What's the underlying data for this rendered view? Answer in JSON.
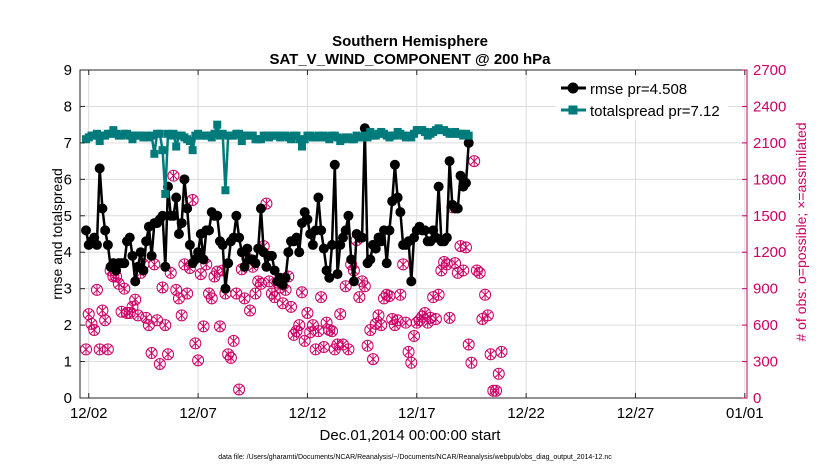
{
  "chart_data": {
    "type": "line",
    "title": "Southern Hemisphere",
    "subtitle": "SAT_V_WIND_COMPONENT @ 200 hPa",
    "xlabel": "Dec.01,2014 00:00:00 start",
    "ylabel_left": "rmse and totalspread",
    "ylabel_right": "# of obs: o=possible; ×=assimilated",
    "footnote": "data file: /Users/gharamti/Documents/NCAR/Reanalysis/~/Documents/NCAR/Reanalysis/webpub/obs_diag_output_2014-12.nc",
    "x_unit": "days since Dec.01,2014 00:00",
    "xlim": [
      0.6,
      31.1
    ],
    "ylim_left": [
      0,
      9
    ],
    "ylim_right": [
      0,
      2700
    ],
    "x_ticks": [
      1,
      6,
      11,
      16,
      21,
      26,
      31
    ],
    "x_tick_labels": [
      "12/02",
      "12/07",
      "12/12",
      "12/17",
      "12/22",
      "12/27",
      "01/01"
    ],
    "y_ticks_left": [
      0,
      1,
      2,
      3,
      4,
      5,
      6,
      7,
      8,
      9
    ],
    "y_ticks_right": [
      0,
      300,
      600,
      900,
      1200,
      1500,
      1800,
      2100,
      2400,
      2700
    ],
    "grid": true,
    "legend_position": "top-right",
    "colors": {
      "rmse": "#000000",
      "totalspread": "#007b7b",
      "obs": "#cc0066",
      "axis": "#262626"
    },
    "series": [
      {
        "name": "rmse",
        "legend_label": "rmse pr=4.508",
        "axis": "left",
        "x_start": 0.875,
        "x_step": 0.125,
        "values": [
          4.6,
          4.2,
          4.3,
          4.4,
          4.2,
          6.3,
          5.2,
          4.6,
          4.2,
          3.6,
          3.7,
          3.5,
          3.7,
          3.7,
          3.7,
          4.3,
          4.4,
          3.9,
          3.2,
          3.6,
          4.0,
          3.5,
          4.3,
          4.7,
          3.9,
          4.8,
          4.8,
          4.9,
          5.0,
          3.6,
          5.8,
          5.0,
          5.0,
          5.5,
          4.5,
          4.8,
          6.0,
          5.2,
          4.2,
          3.7,
          3.8,
          4.0,
          4.5,
          3.8,
          4.6,
          4.6,
          5.1,
          5.0,
          5.0,
          4.3,
          4.2,
          3.0,
          3.7,
          4.3,
          4.4,
          5.0,
          4.4,
          4.0,
          3.6,
          4.1,
          3.8,
          3.8,
          3.7,
          4.1,
          5.2,
          4.0,
          3.6,
          3.9,
          3.9,
          3.5,
          3.2,
          3.3,
          3.1,
          3.3,
          4.0,
          4.3,
          4.3,
          4.4,
          4.0,
          4.8,
          5.1,
          4.9,
          4.5,
          4.2,
          4.6,
          5.5,
          4.6,
          4.1,
          3.5,
          3.3,
          4.2,
          6.4,
          3.4,
          4.2,
          4.4,
          4.6,
          5.0,
          3.8,
          3.2,
          4.5,
          4.4,
          4.4,
          7.4,
          3.7,
          3.8,
          4.2,
          4.1,
          4.4,
          4.3,
          4.6,
          3.7,
          4.6,
          5.4,
          6.4,
          5.5,
          5.1,
          4.2,
          4.2,
          4.3,
          3.2,
          4.4,
          4.6,
          4.7,
          4.6,
          4.6,
          4.3,
          4.3,
          4.6,
          4.4,
          5.8,
          4.3,
          4.3,
          4.4,
          6.5,
          5.3,
          5.2,
          5.2,
          6.1,
          5.8,
          5.9,
          7.0
        ]
      },
      {
        "name": "totalspread",
        "legend_label": "totalspread pr=7.12",
        "axis": "left",
        "x_start": 0.875,
        "x_step": 0.125,
        "values": [
          7.1,
          7.15,
          7.2,
          7.2,
          7.25,
          7.05,
          7.2,
          7.2,
          7.25,
          7.25,
          7.35,
          7.25,
          7.2,
          7.2,
          7.25,
          7.25,
          7.2,
          7.1,
          7.2,
          7.2,
          7.2,
          7.15,
          7.2,
          7.15,
          7.2,
          6.7,
          7.25,
          7.25,
          6.8,
          5.6,
          7.25,
          7.2,
          7.25,
          6.9,
          7.2,
          7.2,
          7.15,
          7.1,
          7.05,
          6.8,
          7.2,
          7.25,
          7.2,
          7.2,
          7.2,
          7.2,
          7.15,
          7.25,
          7.5,
          7.2,
          7.25,
          5.7,
          7.2,
          7.2,
          7.2,
          7.25,
          7.25,
          7.05,
          7.2,
          7.2,
          7.2,
          7.2,
          7.1,
          7.1,
          7.1,
          7.2,
          7.2,
          7.15,
          7.2,
          7.2,
          7.2,
          7.15,
          7.2,
          7.2,
          7.15,
          7.1,
          7.2,
          7.2,
          7.1,
          6.9,
          7.1,
          7.2,
          7.2,
          7.15,
          7.15,
          7.2,
          7.15,
          7.2,
          7.15,
          7.1,
          7.2,
          7.2,
          7.15,
          7.05,
          7.1,
          7.15,
          7.15,
          7.1,
          7.1,
          7.2,
          7.15,
          7.15,
          7.2,
          7.15,
          7.3,
          7.2,
          7.2,
          7.25,
          7.3,
          7.25,
          7.2,
          7.15,
          7.2,
          7.2,
          7.3,
          7.25,
          7.2,
          7.15,
          7.2,
          7.15,
          7.25,
          7.35,
          7.35,
          7.35,
          7.3,
          7.2,
          7.25,
          7.3,
          7.35,
          7.4,
          7.35,
          7.35,
          7.3,
          7.25,
          7.25,
          7.3,
          7.25,
          7.25,
          7.2,
          7.25,
          7.2
        ]
      },
      {
        "name": "obs_possible",
        "axis": "right",
        "marker": "circle",
        "x_start": 0.875,
        "x_step": 0.125,
        "values": [
          400,
          690,
          610,
          560,
          890,
          400,
          720,
          640,
          400,
          1050,
          1000,
          1000,
          940,
          710,
          900,
          700,
          700,
          750,
          810,
          680,
          1030,
          1100,
          660,
          600,
          370,
          1100,
          640,
          280,
          910,
          600,
          360,
          1030,
          1830,
          890,
          820,
          680,
          1100,
          860,
          1070,
          1630,
          450,
          310,
          1020,
          590,
          1100,
          860,
          820,
          1000,
          1040,
          590,
          1050,
          860,
          360,
          330,
          470,
          860,
          70,
          1060,
          820,
          1150,
          720,
          1080,
          860,
          960,
          940,
          1250,
          1600,
          960,
          860,
          830,
          950,
          910,
          780,
          890,
          1000,
          750,
          520,
          550,
          600,
          870,
          470,
          700,
          540,
          600,
          400,
          550,
          830,
          420,
          620,
          560,
          550,
          400,
          440,
          690,
          440,
          920,
          400,
          1100,
          1050,
          1300,
          830,
          960,
          920,
          430,
          560,
          320,
          610,
          680,
          600,
          820,
          850,
          840,
          650,
          600,
          640,
          850,
          1100,
          620,
          380,
          290,
          510,
          620,
          640,
          670,
          700,
          620,
          660,
          830,
          650,
          850,
          1050,
          1120,
          1100,
          660,
          1570,
          1110,
          1030,
          1250,
          1050,
          1240,
          440,
          290,
          1950,
          1050,
          1030,
          650,
          850,
          680,
          360,
          60,
          60,
          200,
          380
        ]
      },
      {
        "name": "obs_assimilated",
        "axis": "right",
        "marker": "x",
        "x_start": 0.875,
        "x_step": 0.125,
        "values": [
          400,
          690,
          610,
          560,
          890,
          400,
          720,
          640,
          400,
          1050,
          1000,
          1000,
          940,
          710,
          900,
          700,
          700,
          750,
          810,
          680,
          1030,
          1100,
          660,
          600,
          370,
          1100,
          640,
          280,
          910,
          600,
          360,
          1030,
          1830,
          890,
          820,
          680,
          1100,
          860,
          1070,
          1630,
          450,
          310,
          1020,
          590,
          1100,
          860,
          820,
          1000,
          1040,
          590,
          1050,
          860,
          360,
          330,
          470,
          860,
          70,
          1060,
          820,
          1150,
          720,
          1080,
          860,
          960,
          940,
          1250,
          1600,
          960,
          860,
          830,
          950,
          910,
          780,
          890,
          1000,
          750,
          520,
          550,
          600,
          870,
          470,
          700,
          540,
          600,
          400,
          550,
          830,
          420,
          620,
          560,
          550,
          400,
          440,
          690,
          440,
          920,
          400,
          1100,
          1050,
          1300,
          830,
          960,
          920,
          430,
          560,
          320,
          610,
          680,
          600,
          820,
          850,
          840,
          650,
          600,
          640,
          850,
          1100,
          620,
          380,
          290,
          510,
          620,
          640,
          670,
          700,
          620,
          660,
          830,
          650,
          850,
          1050,
          1120,
          1100,
          660,
          1570,
          1110,
          1030,
          1250,
          1050,
          1240,
          440,
          290,
          1950,
          1050,
          1030,
          650,
          850,
          680,
          360,
          60,
          60,
          200,
          380
        ]
      }
    ]
  }
}
